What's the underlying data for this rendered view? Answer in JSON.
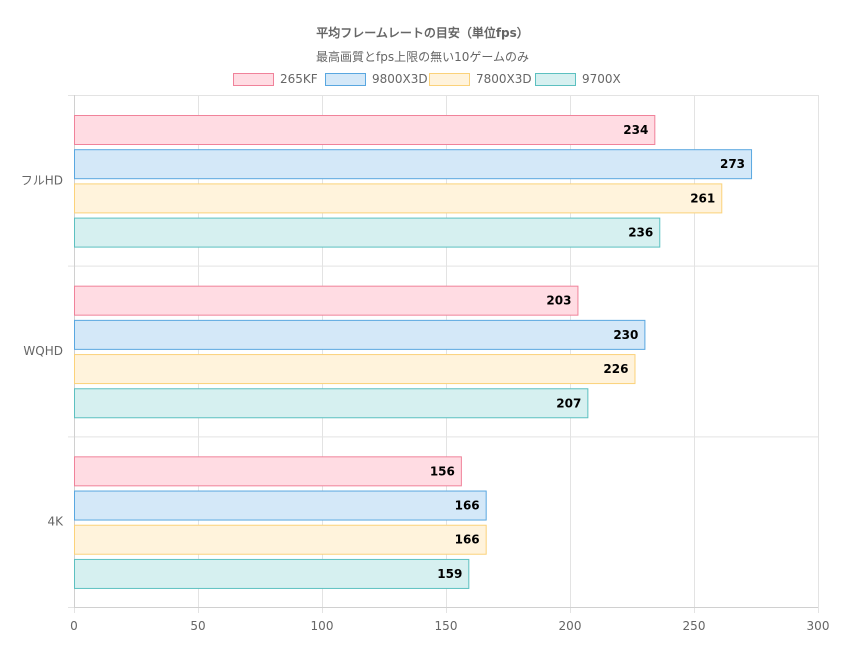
{
  "chart_data": {
    "type": "bar",
    "orientation": "horizontal",
    "title": "平均フレームレートの目安（単位fps）",
    "subtitle": "最高画質とfps上限の無い10ゲームのみ",
    "categories": [
      "フルHD",
      "WQHD",
      "4K"
    ],
    "series": [
      {
        "name": "265KF",
        "values": [
          234,
          203,
          156
        ],
        "fill": "#FFDCE3",
        "stroke": "#F0829A"
      },
      {
        "name": "9800X3D",
        "values": [
          273,
          230,
          166
        ],
        "fill": "#D4E8F8",
        "stroke": "#59A7E0"
      },
      {
        "name": "7800X3D",
        "values": [
          261,
          226,
          166
        ],
        "fill": "#FFF3DC",
        "stroke": "#FBD27A"
      },
      {
        "name": "9700X",
        "values": [
          236,
          207,
          159
        ],
        "fill": "#D6F0F0",
        "stroke": "#5CC0C0"
      }
    ],
    "xlim": [
      0,
      300
    ],
    "xticks": [
      0,
      50,
      100,
      150,
      200,
      250,
      300
    ],
    "grid": true,
    "legend_position": "top",
    "data_labels": true
  }
}
